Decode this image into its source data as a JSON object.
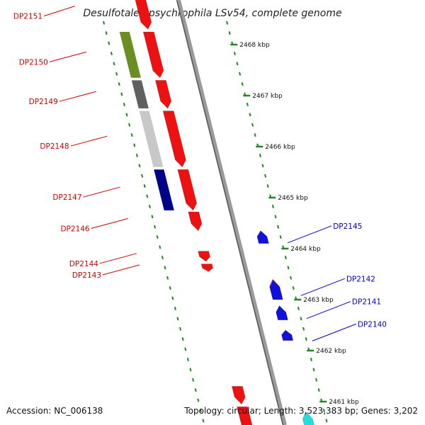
{
  "title": "Desulfotalea psychrophila LSv54, complete genome",
  "footer": {
    "accession": "Accession: NC_006138",
    "summary": "Topology: circular; Length: 3,523,383 bp; Genes: 3,202"
  },
  "colors": {
    "backbone": "#8a8a8a",
    "tick": "#1f8a1f",
    "forward_gene": "#ee1111",
    "forward_label": "#cc0000",
    "reverse_label": "#0000cc"
  },
  "scale": [
    {
      "label": "2468 kbp",
      "pos": 2468
    },
    {
      "label": "2467 kbp",
      "pos": 2467
    },
    {
      "label": "2466 kbp",
      "pos": 2466
    },
    {
      "label": "2465 kbp",
      "pos": 2465
    },
    {
      "label": "2464 kbp",
      "pos": 2464
    },
    {
      "label": "2463 kbp",
      "pos": 2463
    },
    {
      "label": "2462 kbp",
      "pos": 2462
    },
    {
      "label": "2461 kbp",
      "pos": 2461
    }
  ],
  "genes": [
    {
      "label": "DP2151",
      "strand": "forward",
      "start": 2468.3,
      "end": 2469.1,
      "color": "#ee1111"
    },
    {
      "label": "DP2150",
      "strand": "forward",
      "start": 2467.35,
      "end": 2468.25,
      "color": "#ee1111"
    },
    {
      "label": "DP2149",
      "strand": "forward",
      "start": 2466.75,
      "end": 2467.3,
      "color": "#ee1111"
    },
    {
      "label": "DP2148",
      "strand": "forward",
      "start": 2465.6,
      "end": 2466.7,
      "color": "#ee1111"
    },
    {
      "label": "DP2147",
      "strand": "forward",
      "start": 2464.75,
      "end": 2465.55,
      "color": "#ee1111"
    },
    {
      "label": "DP2146",
      "strand": "forward",
      "start": 2464.35,
      "end": 2464.72,
      "color": "#ee1111"
    },
    {
      "label": "DP2144",
      "strand": "forward",
      "start": 2463.75,
      "end": 2463.95,
      "color": "#ee1111"
    },
    {
      "label": "DP2143",
      "strand": "forward",
      "start": 2463.55,
      "end": 2463.7,
      "color": "#ee1111"
    },
    {
      "label": "DP2145",
      "strand": "reverse",
      "start": 2464.1,
      "end": 2464.35,
      "color": "#1111dd"
    },
    {
      "label": "DP2142",
      "strand": "reverse",
      "start": 2463.0,
      "end": 2463.38,
      "color": "#1111dd"
    },
    {
      "label": "DP2141",
      "strand": "reverse",
      "start": 2462.6,
      "end": 2462.88,
      "color": "#1111dd"
    },
    {
      "label": "DP2140",
      "strand": "reverse",
      "start": 2462.2,
      "end": 2462.4,
      "color": "#1111dd"
    }
  ],
  "extra_features": [
    {
      "strand": "forward",
      "start": 2460.95,
      "end": 2461.3,
      "color": "#ee1111"
    },
    {
      "strand": "forward",
      "start": 2460.4,
      "end": 2460.9,
      "color": "#ee1111"
    },
    {
      "strand": "reverse",
      "start": 2463.05,
      "end": 2463.4,
      "color": "#ee2277"
    },
    {
      "strand": "reverse",
      "start": 2462.2,
      "end": 2462.4,
      "color": "#ee2277"
    },
    {
      "strand": "reverse",
      "start": 2460.4,
      "end": 2460.8,
      "color": "#22dddd"
    }
  ],
  "overlay_blocks": [
    {
      "start": 2467.35,
      "end": 2468.25,
      "color": "#6b8e23"
    },
    {
      "start": 2466.75,
      "end": 2467.3,
      "color": "#606060"
    },
    {
      "start": 2465.6,
      "end": 2466.7,
      "color": "#c8c8c8"
    },
    {
      "start": 2465.0,
      "end": 2465.55,
      "color": "#c8c8c8"
    },
    {
      "start": 2464.75,
      "end": 2465.55,
      "color": "#000088"
    }
  ]
}
